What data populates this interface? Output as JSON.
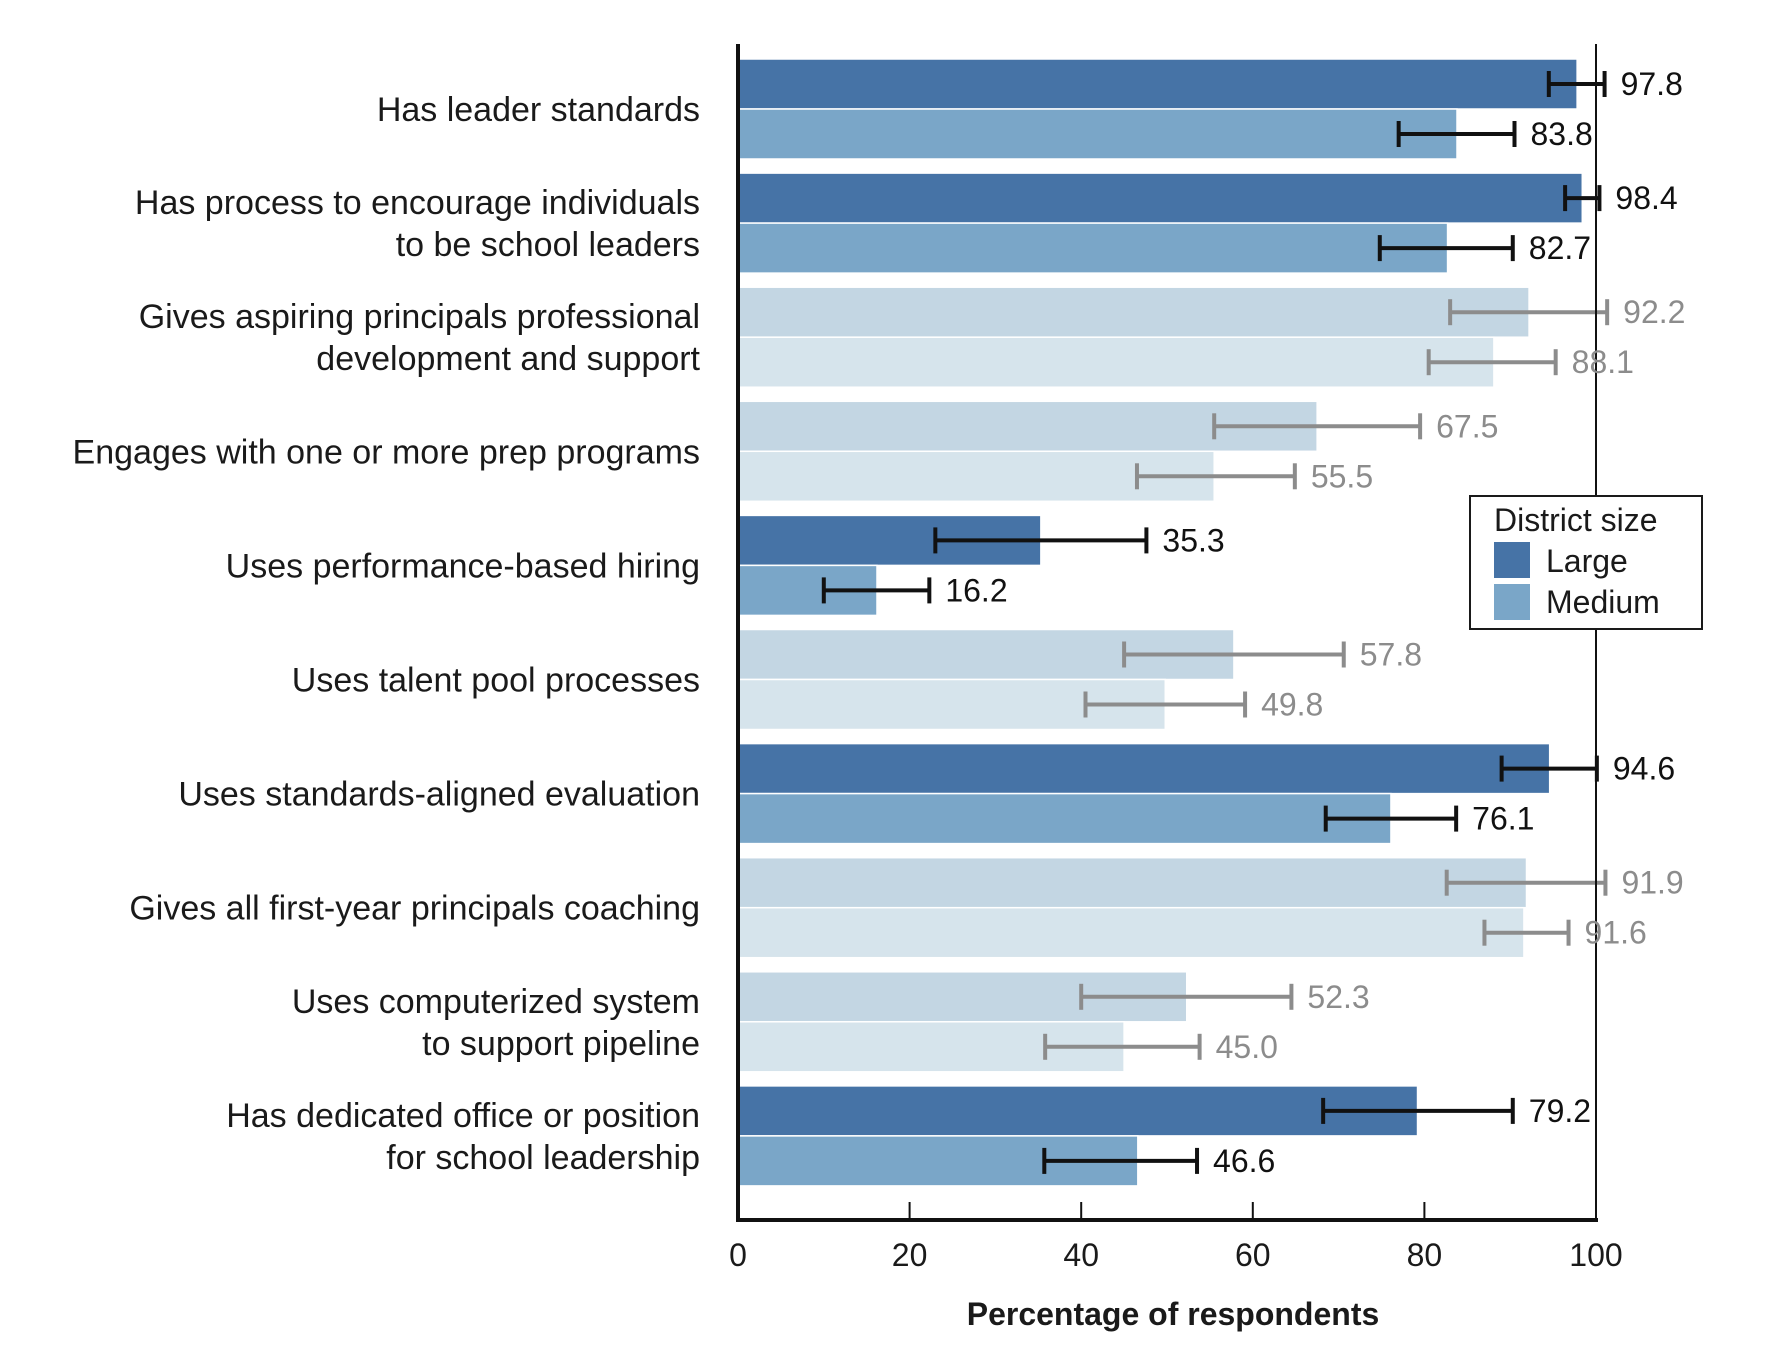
{
  "chart_data": {
    "type": "bar",
    "orientation": "horizontal",
    "xlabel": "Percentage of respondents",
    "xlim": [
      0,
      100
    ],
    "x_ticks": [
      "0",
      "20",
      "40",
      "60",
      "80",
      "100"
    ],
    "legend": {
      "title": "District size",
      "placement": "right",
      "items": [
        {
          "name": "Large",
          "color": "#4673a6"
        },
        {
          "name": "Medium",
          "color": "#7aa6c8"
        }
      ]
    },
    "series": [
      {
        "name": "Large",
        "color": "#4673a6",
        "muted_color": "#c3d6e3"
      },
      {
        "name": "Medium",
        "color": "#7aa6c8",
        "muted_color": "#d6e4ec"
      }
    ],
    "categories": [
      {
        "lines": [
          "Has leader standards"
        ],
        "significant": true,
        "values": [
          97.8,
          83.8
        ],
        "labels": [
          "97.8",
          "83.8"
        ],
        "ci": [
          [
            94.5,
            101.0
          ],
          [
            77.0,
            90.5
          ]
        ]
      },
      {
        "lines": [
          "Has process to encourage individuals",
          "to be school leaders"
        ],
        "significant": true,
        "values": [
          98.4,
          82.7
        ],
        "labels": [
          "98.4",
          "82.7"
        ],
        "ci": [
          [
            96.4,
            100.4
          ],
          [
            74.8,
            90.3
          ]
        ]
      },
      {
        "lines": [
          "Gives aspiring principals professional",
          "development and support"
        ],
        "significant": false,
        "values": [
          92.2,
          88.1
        ],
        "labels": [
          "92.2",
          "88.1"
        ],
        "ci": [
          [
            83.0,
            101.3
          ],
          [
            80.5,
            95.3
          ]
        ]
      },
      {
        "lines": [
          "Engages with one or more prep programs"
        ],
        "significant": false,
        "values": [
          67.5,
          55.5
        ],
        "labels": [
          "67.5",
          "55.5"
        ],
        "ci": [
          [
            55.5,
            79.5
          ],
          [
            46.5,
            64.9
          ]
        ]
      },
      {
        "lines": [
          "Uses performance-based hiring"
        ],
        "significant": true,
        "values": [
          35.3,
          16.2
        ],
        "labels": [
          "35.3",
          "16.2"
        ],
        "ci": [
          [
            23.0,
            47.6
          ],
          [
            10.0,
            22.3
          ]
        ]
      },
      {
        "lines": [
          "Uses talent pool processes"
        ],
        "significant": false,
        "values": [
          57.8,
          49.8
        ],
        "labels": [
          "57.8",
          "49.8"
        ],
        "ci": [
          [
            45.0,
            70.6
          ],
          [
            40.5,
            59.1
          ]
        ]
      },
      {
        "lines": [
          "Uses standards-aligned evaluation"
        ],
        "significant": true,
        "values": [
          94.6,
          76.1
        ],
        "labels": [
          "94.6",
          "76.1"
        ],
        "ci": [
          [
            89.0,
            100.1
          ],
          [
            68.5,
            83.7
          ]
        ]
      },
      {
        "lines": [
          "Gives all first-year principals coaching"
        ],
        "significant": false,
        "values": [
          91.9,
          91.6
        ],
        "labels": [
          "91.9",
          "91.6"
        ],
        "ci": [
          [
            82.6,
            101.1
          ],
          [
            87.0,
            96.8
          ]
        ]
      },
      {
        "lines": [
          "Uses computerized system",
          "to support pipeline"
        ],
        "significant": false,
        "values": [
          52.3,
          45.0
        ],
        "labels": [
          "52.3",
          "45.0"
        ],
        "ci": [
          [
            40.0,
            64.5
          ],
          [
            35.8,
            53.8
          ]
        ]
      },
      {
        "lines": [
          "Has dedicated office or position",
          "for school leadership"
        ],
        "significant": true,
        "values": [
          79.2,
          46.6
        ],
        "labels": [
          "79.2",
          "46.6"
        ],
        "ci": [
          [
            68.2,
            90.3
          ],
          [
            35.7,
            53.5
          ]
        ]
      }
    ]
  }
}
